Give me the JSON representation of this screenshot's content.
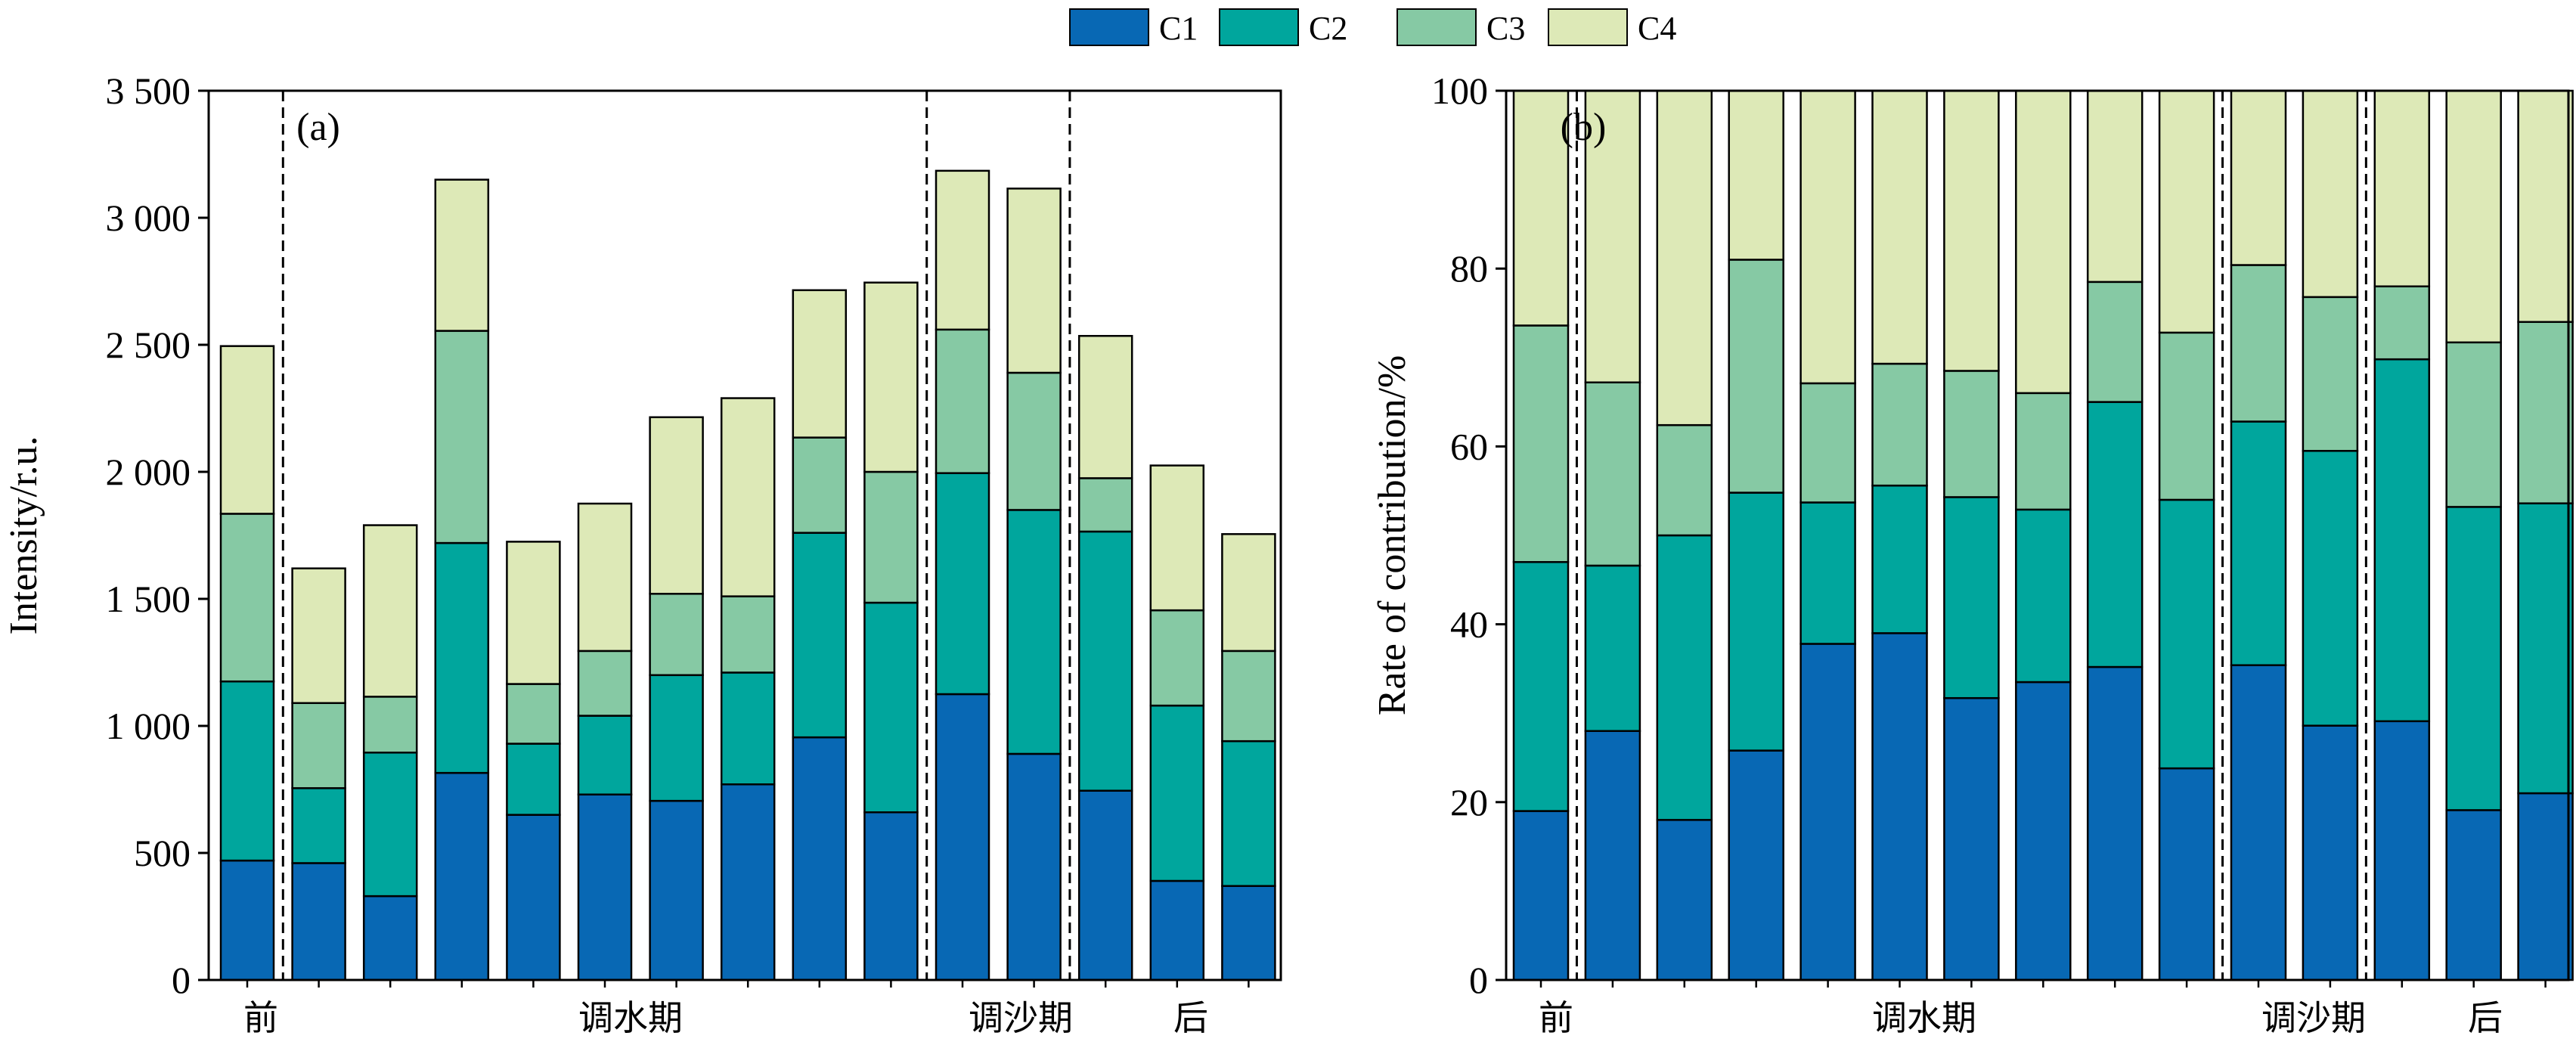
{
  "legend": [
    {
      "label": "C1",
      "color": "#0868b4"
    },
    {
      "label": "C2",
      "color": "#00a69d"
    },
    {
      "label": "C3",
      "color": "#86c9a4"
    },
    {
      "label": "C4",
      "color": "#dde9b7"
    }
  ],
  "chart_data": [
    {
      "type": "bar",
      "stacked": true,
      "panel_label": "(a)",
      "ylabel": "Intensity/r.u.",
      "ylim": [
        0,
        3500
      ],
      "yticks": [
        0,
        500,
        1000,
        1500,
        2000,
        2500,
        3000,
        3500
      ],
      "ytick_labels": [
        "0",
        "500",
        "1 000",
        "1 500",
        "2 000",
        "2 500",
        "3 000",
        "3 500"
      ],
      "series": [
        {
          "name": "C1",
          "values": [
            470,
            460,
            330,
            815,
            650,
            730,
            705,
            770,
            955,
            660,
            1125,
            890,
            745,
            390,
            370
          ]
        },
        {
          "name": "C2",
          "values": [
            705,
            295,
            565,
            905,
            280,
            310,
            495,
            440,
            805,
            825,
            870,
            960,
            1020,
            690,
            570
          ]
        },
        {
          "name": "C3",
          "values": [
            660,
            335,
            220,
            835,
            235,
            255,
            320,
            300,
            375,
            515,
            565,
            540,
            210,
            375,
            355
          ]
        },
        {
          "name": "C4",
          "values": [
            660,
            530,
            675,
            595,
            560,
            580,
            695,
            780,
            580,
            745,
            625,
            725,
            560,
            570,
            460
          ]
        }
      ],
      "periods": [
        {
          "label": "前",
          "span": [
            0,
            0
          ]
        },
        {
          "label": "调水期",
          "span": [
            1,
            9
          ]
        },
        {
          "label": "调沙期",
          "span": [
            10,
            11
          ]
        },
        {
          "label": "后",
          "span": [
            12,
            14
          ]
        }
      ],
      "dividers_after": [
        0,
        9,
        11
      ]
    },
    {
      "type": "bar",
      "stacked": true,
      "panel_label": "(b)",
      "ylabel": "Rate of contribution/%",
      "ylim": [
        0,
        100
      ],
      "yticks": [
        0,
        20,
        40,
        60,
        80,
        100
      ],
      "ytick_labels": [
        "0",
        "20",
        "40",
        "60",
        "80",
        "100"
      ],
      "series": [
        {
          "name": "C1",
          "values": [
            19,
            28,
            18,
            25.8,
            37.8,
            39,
            31.7,
            33.5,
            35.2,
            23.8,
            35.4,
            28.6,
            29.1,
            19.1,
            21
          ]
        },
        {
          "name": "C2",
          "values": [
            28,
            18.6,
            32,
            29,
            15.9,
            16.6,
            22.6,
            19.4,
            29.8,
            30.2,
            27.4,
            30.9,
            40.7,
            34.1,
            32.6
          ]
        },
        {
          "name": "C3",
          "values": [
            26.6,
            20.6,
            12.4,
            26.2,
            13.4,
            13.7,
            14.2,
            13.1,
            13.5,
            18.8,
            17.6,
            17.3,
            8.2,
            18.5,
            20.4
          ]
        },
        {
          "name": "C4",
          "values": [
            26.4,
            32.8,
            37.6,
            19,
            32.9,
            30.7,
            31.5,
            34,
            21.5,
            27.2,
            19.6,
            23.2,
            22,
            28.3,
            26
          ]
        }
      ],
      "periods": [
        {
          "label": "前",
          "span": [
            0,
            0
          ]
        },
        {
          "label": "调水期",
          "span": [
            1,
            9
          ]
        },
        {
          "label": "调沙期",
          "span": [
            10,
            11
          ]
        },
        {
          "label": "后",
          "span": [
            12,
            14
          ]
        }
      ],
      "dividers_after": [
        0,
        9,
        11
      ]
    }
  ]
}
